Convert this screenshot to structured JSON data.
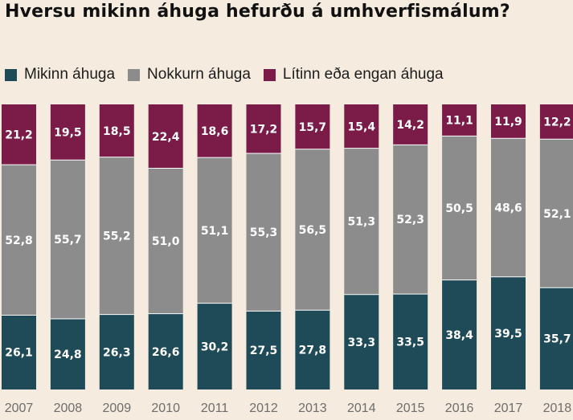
{
  "chart_data": {
    "type": "bar",
    "stacked": true,
    "title": "Hversu mikinn áhuga hefurðu á umhverfismálum?",
    "categories": [
      "2007",
      "2008",
      "2009",
      "2010",
      "2011",
      "2012",
      "2013",
      "2014",
      "2015",
      "2016",
      "2017",
      "2018"
    ],
    "series": [
      {
        "name": "Mikinn áhuga",
        "color": "#1f4a58",
        "values": [
          26.1,
          24.8,
          26.3,
          26.6,
          30.2,
          27.5,
          27.8,
          33.3,
          33.5,
          38.4,
          39.5,
          35.7
        ]
      },
      {
        "name": "Nokkurn áhuga",
        "color": "#8c8c8c",
        "values": [
          52.8,
          55.7,
          55.2,
          51.0,
          51.1,
          55.3,
          56.5,
          51.3,
          52.3,
          50.5,
          48.6,
          52.1
        ]
      },
      {
        "name": "Lítinn eða engan áhuga",
        "color": "#7a1b48",
        "values": [
          21.2,
          19.5,
          18.5,
          22.4,
          18.6,
          17.2,
          15.7,
          15.4,
          14.2,
          11.1,
          11.9,
          12.2
        ]
      }
    ],
    "data_labels": [
      [
        "26,1",
        "24,8",
        "26,3",
        "26,6",
        "30,2",
        "27,5",
        "27,8",
        "33,3",
        "33,5",
        "38,4",
        "39,5",
        "35,7"
      ],
      [
        "52,8",
        "55,7",
        "55,2",
        "51,0",
        "51,1",
        "55,3",
        "56,5",
        "51,3",
        "52,3",
        "50,5",
        "48,6",
        "52,1"
      ],
      [
        "21,2",
        "19,5",
        "18,5",
        "22,4",
        "18,6",
        "17,2",
        "15,7",
        "15,4",
        "14,2",
        "11,1",
        "11,9",
        "12,2"
      ]
    ],
    "ylim": [
      0,
      100
    ],
    "grid": false,
    "legend_position": "top-left"
  }
}
